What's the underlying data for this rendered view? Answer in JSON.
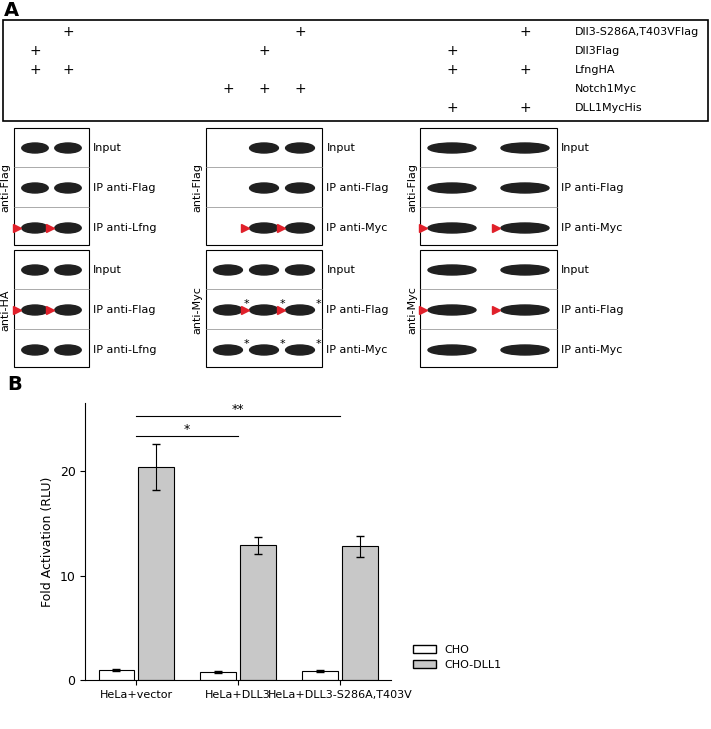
{
  "panel_a": {
    "panel_label": "A",
    "plus": "+",
    "asterisk": "*",
    "conditions": [
      {
        "name": "Dll3-S286A,T403VFlag",
        "lanes": [
          2,
          5,
          7
        ]
      },
      {
        "name": "Dll3Flag",
        "lanes": [
          1,
          4,
          6
        ]
      },
      {
        "name": "LfngHA",
        "lanes": [
          1,
          2,
          6,
          7
        ]
      },
      {
        "name": "Notch1Myc",
        "lanes": [
          3,
          4,
          5
        ]
      },
      {
        "name": "DLL1MycHis",
        "lanes": [
          6,
          7
        ]
      }
    ],
    "groups": [
      {
        "lanes": [
          1,
          2
        ],
        "blots": [
          {
            "antibody": "anti-Flag",
            "rows": [
              {
                "name": "Input",
                "bands": [
                  1,
                  2
                ]
              },
              {
                "name": "IP anti-Flag",
                "bands": [
                  1,
                  2
                ]
              },
              {
                "name": "IP anti-Lfng",
                "bands": [
                  1,
                  2
                ],
                "arrowheads": [
                  1,
                  2
                ]
              }
            ]
          },
          {
            "antibody": "anti-HA",
            "rows": [
              {
                "name": "Input",
                "bands": [
                  1,
                  2
                ]
              },
              {
                "name": "IP anti-Flag",
                "bands": [
                  1,
                  2
                ],
                "arrowheads": [
                  1,
                  2
                ]
              },
              {
                "name": "IP anti-Lfng",
                "bands": [
                  1,
                  2
                ]
              }
            ]
          }
        ]
      },
      {
        "lanes": [
          3,
          4,
          5
        ],
        "blots": [
          {
            "antibody": "anti-Flag",
            "rows": [
              {
                "name": "Input",
                "bands": [
                  4,
                  5
                ]
              },
              {
                "name": "IP anti-Flag",
                "bands": [
                  4,
                  5
                ]
              },
              {
                "name": "IP anti-Myc",
                "bands": [
                  4,
                  5
                ],
                "arrowheads": [
                  4,
                  5
                ]
              }
            ]
          },
          {
            "antibody": "anti-Myc",
            "rows": [
              {
                "name": "Input",
                "bands": [
                  3,
                  4,
                  5
                ]
              },
              {
                "name": "IP anti-Flag",
                "bands": [
                  3,
                  4,
                  5
                ],
                "arrowheads": [
                  4,
                  5
                ],
                "asterisks": [
                  3,
                  4,
                  5
                ]
              },
              {
                "name": "IP anti-Myc",
                "bands": [
                  3,
                  4,
                  5
                ],
                "asterisks": [
                  3,
                  4,
                  5
                ]
              }
            ]
          }
        ]
      },
      {
        "lanes": [
          6,
          7
        ],
        "blots": [
          {
            "antibody": "anti-Flag",
            "rows": [
              {
                "name": "Input",
                "bands": [
                  6,
                  7
                ]
              },
              {
                "name": "IP anti-Flag",
                "bands": [
                  6,
                  7
                ]
              },
              {
                "name": "IP anti-Myc",
                "bands": [
                  6,
                  7
                ],
                "arrowheads": [
                  6,
                  7
                ]
              }
            ]
          },
          {
            "antibody": "anti-Myc",
            "rows": [
              {
                "name": "Input",
                "bands": [
                  6,
                  7
                ]
              },
              {
                "name": "IP anti-Flag",
                "bands": [
                  6,
                  7
                ],
                "arrowheads": [
                  6,
                  7
                ]
              },
              {
                "name": "IP anti-Myc",
                "bands": [
                  6,
                  7
                ]
              }
            ]
          }
        ]
      }
    ]
  },
  "chart_data": {
    "type": "bar",
    "panel_label": "B",
    "categories": [
      "HeLa+vector",
      "HeLa+DLL3",
      "HeLa+DLL3-S286A,T403V"
    ],
    "y_label": "Fold Activation (RLU)",
    "ylim": [
      0,
      26.5
    ],
    "yticks": [
      0,
      10,
      20
    ],
    "legend": "lower left",
    "series": [
      {
        "name": "CHO",
        "color": "#ffffff",
        "values": [
          1.0,
          0.8,
          0.9
        ],
        "errors": [
          0.1,
          0.1,
          0.1
        ]
      },
      {
        "name": "CHO-DLL1",
        "color": "#c8c8c8",
        "values": [
          20.4,
          12.9,
          12.8
        ],
        "errors": [
          2.2,
          0.8,
          1.0
        ]
      }
    ],
    "significance": [
      {
        "from": 0,
        "to": 1,
        "text": "*"
      },
      {
        "from": 0,
        "to": 2,
        "text": "**"
      }
    ]
  }
}
